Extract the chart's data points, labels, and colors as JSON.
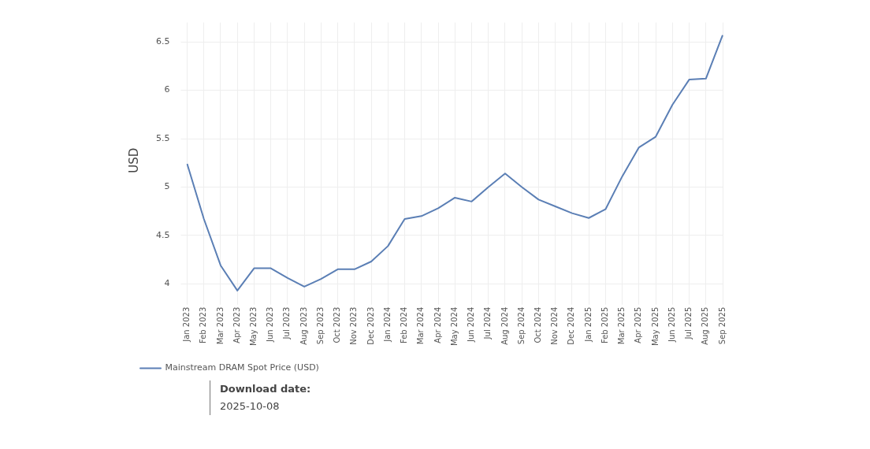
{
  "chart_data": {
    "type": "line",
    "ylabel": "USD",
    "categories": [
      "Jan 2023",
      "Feb 2023",
      "Mar 2023",
      "Apr 2023",
      "May 2023",
      "Jun 2023",
      "Jul 2023",
      "Aug 2023",
      "Sep 2023",
      "Oct 2023",
      "Nov 2023",
      "Dec 2023",
      "Jan 2024",
      "Feb 2024",
      "Mar 2024",
      "Apr 2024",
      "May 2024",
      "Jun 2024",
      "Jul 2024",
      "Aug 2024",
      "Sep 2024",
      "Oct 2024",
      "Nov 2024",
      "Dec 2024",
      "Jan 2025",
      "Feb 2025",
      "Mar 2025",
      "Apr 2025",
      "May 2025",
      "Jun 2025",
      "Jul 2025",
      "Aug 2025",
      "Sep 2025"
    ],
    "series": [
      {
        "name": "Mainstream DRAM Spot Price (USD)",
        "color": "#5b7fb5",
        "values": [
          5.24,
          4.67,
          4.19,
          3.93,
          4.16,
          4.16,
          4.06,
          3.97,
          4.05,
          4.15,
          4.15,
          4.23,
          4.39,
          4.67,
          4.7,
          4.78,
          4.89,
          4.85,
          5.0,
          5.14,
          5.0,
          4.87,
          4.8,
          4.73,
          4.68,
          4.77,
          5.11,
          5.41,
          5.52,
          5.85,
          6.11,
          6.12,
          6.57
        ]
      }
    ],
    "ylim": [
      3.85,
      6.7
    ],
    "yticks": [
      4,
      4.5,
      5,
      5.5,
      6,
      6.5
    ],
    "grid": true,
    "legend": "bottom left",
    "marker": "none",
    "line_style": "solid",
    "annotations": [
      "Download date:",
      "2025-10-08"
    ]
  }
}
